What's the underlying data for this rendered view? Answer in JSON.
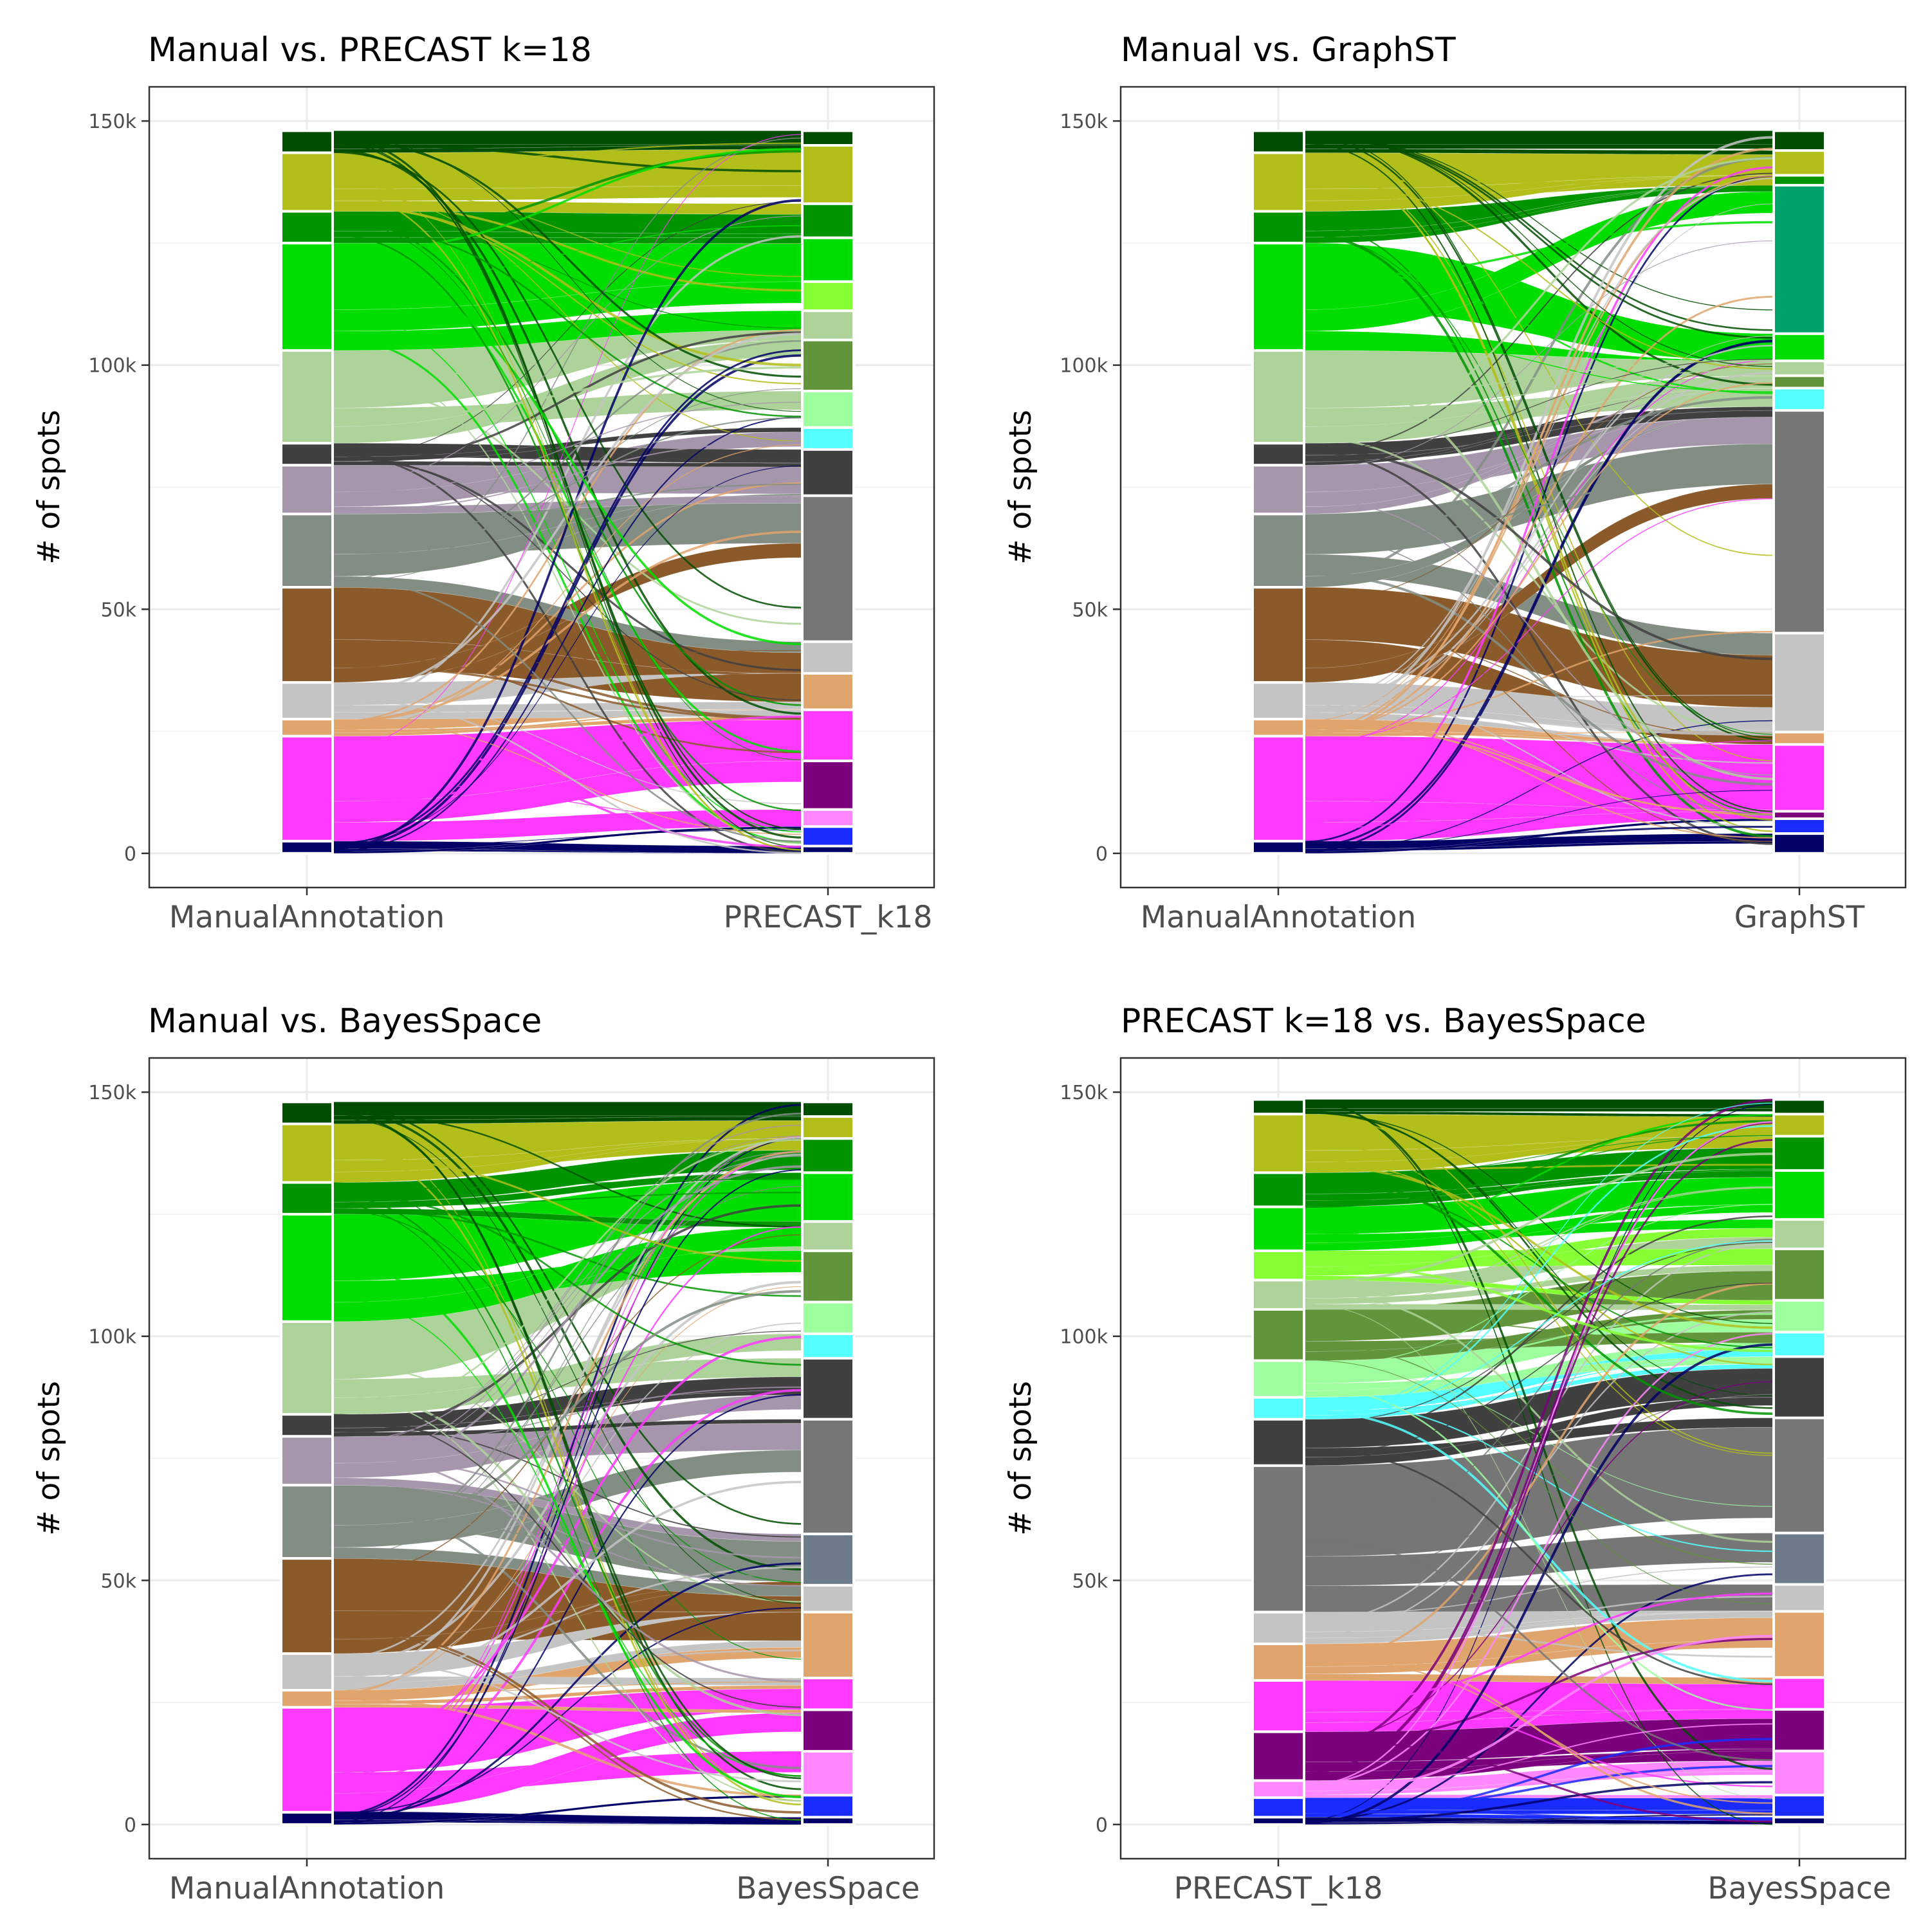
{
  "chart_data": [
    {
      "type": "alluvial",
      "title": "Manual vs. PRECAST k=18",
      "ylabel": "# of spots",
      "ylim": [
        -7000,
        157000
      ],
      "yticks": [
        0,
        50000,
        100000,
        150000
      ],
      "ytick_labels": [
        "0",
        "50k",
        "100k",
        "150k"
      ],
      "axes": [
        "ManualAnnotation",
        "PRECAST_k18"
      ],
      "left_strata": [
        {
          "color": "#004D00",
          "value": 4500
        },
        {
          "color": "#B2BE1A",
          "value": 12000
        },
        {
          "color": "#009400",
          "value": 6500
        },
        {
          "color": "#00DE00",
          "value": 22000
        },
        {
          "color": "#AED39A",
          "value": 19000
        },
        {
          "color": "#404040",
          "value": 4500
        },
        {
          "color": "#A696AB",
          "value": 10000
        },
        {
          "color": "#828E84",
          "value": 15000
        },
        {
          "color": "#8B5A2B",
          "value": 19500
        },
        {
          "color": "#C4C4C4",
          "value": 7500
        },
        {
          "color": "#E0A46D",
          "value": 3500
        },
        {
          "color": "#FF39FF",
          "value": 21500
        },
        {
          "color": "#000066",
          "value": 2500
        }
      ],
      "right_strata": [
        {
          "color": "#004D00",
          "value": 3000
        },
        {
          "color": "#B2BE1A",
          "value": 12000
        },
        {
          "color": "#009400",
          "value": 7000
        },
        {
          "color": "#00DE00",
          "value": 9000
        },
        {
          "color": "#87FF35",
          "value": 6000
        },
        {
          "color": "#AED39A",
          "value": 6000
        },
        {
          "color": "#62953B",
          "value": 10500
        },
        {
          "color": "#9EFF9E",
          "value": 7500
        },
        {
          "color": "#55FFFF",
          "value": 4500
        },
        {
          "color": "#404040",
          "value": 9500
        },
        {
          "color": "#767676",
          "value": 30000
        },
        {
          "color": "#C4C4C4",
          "value": 6500
        },
        {
          "color": "#E0A46D",
          "value": 7500
        },
        {
          "color": "#FF39FF",
          "value": 10500
        },
        {
          "color": "#7B007B",
          "value": 10000
        },
        {
          "color": "#FF87FF",
          "value": 3500
        },
        {
          "color": "#1A2BFF",
          "value": 4000
        },
        {
          "color": "#000066",
          "value": 1500
        }
      ]
    },
    {
      "type": "alluvial",
      "title": "Manual vs. GraphST",
      "ylabel": "# of spots",
      "ylim": [
        -7000,
        157000
      ],
      "yticks": [
        0,
        50000,
        100000,
        150000
      ],
      "ytick_labels": [
        "0",
        "50k",
        "100k",
        "150k"
      ],
      "axes": [
        "ManualAnnotation",
        "GraphST"
      ],
      "left_strata": [
        {
          "color": "#004D00",
          "value": 4500
        },
        {
          "color": "#B2BE1A",
          "value": 12000
        },
        {
          "color": "#009400",
          "value": 6500
        },
        {
          "color": "#00DE00",
          "value": 22000
        },
        {
          "color": "#AED39A",
          "value": 19000
        },
        {
          "color": "#404040",
          "value": 4500
        },
        {
          "color": "#A696AB",
          "value": 10000
        },
        {
          "color": "#828E84",
          "value": 15000
        },
        {
          "color": "#8B5A2B",
          "value": 19500
        },
        {
          "color": "#C4C4C4",
          "value": 7500
        },
        {
          "color": "#E0A46D",
          "value": 3500
        },
        {
          "color": "#FF39FF",
          "value": 21500
        },
        {
          "color": "#000066",
          "value": 2500
        }
      ],
      "right_strata": [
        {
          "color": "#004D00",
          "value": 4000
        },
        {
          "color": "#B2BE1A",
          "value": 5000
        },
        {
          "color": "#009400",
          "value": 2000
        },
        {
          "color": "#00A36B",
          "value": 30000
        },
        {
          "color": "#00DE00",
          "value": 5500
        },
        {
          "color": "#AED39A",
          "value": 3000
        },
        {
          "color": "#62953B",
          "value": 2500
        },
        {
          "color": "#55FFFF",
          "value": 4500
        },
        {
          "color": "#767676",
          "value": 45000
        },
        {
          "color": "#C4C4C4",
          "value": 20000
        },
        {
          "color": "#E0A46D",
          "value": 2500
        },
        {
          "color": "#FF39FF",
          "value": 13500
        },
        {
          "color": "#7B007B",
          "value": 1500
        },
        {
          "color": "#1A2BFF",
          "value": 3000
        },
        {
          "color": "#000066",
          "value": 4000
        }
      ]
    },
    {
      "type": "alluvial",
      "title": "Manual vs. BayesSpace",
      "ylabel": "# of spots",
      "ylim": [
        -7000,
        157000
      ],
      "yticks": [
        0,
        50000,
        100000,
        150000
      ],
      "ytick_labels": [
        "0",
        "50k",
        "100k",
        "150k"
      ],
      "axes": [
        "ManualAnnotation",
        "BayesSpace"
      ],
      "left_strata": [
        {
          "color": "#004D00",
          "value": 4500
        },
        {
          "color": "#B2BE1A",
          "value": 12000
        },
        {
          "color": "#009400",
          "value": 6500
        },
        {
          "color": "#00DE00",
          "value": 22000
        },
        {
          "color": "#AED39A",
          "value": 19000
        },
        {
          "color": "#404040",
          "value": 4500
        },
        {
          "color": "#A696AB",
          "value": 10000
        },
        {
          "color": "#828E84",
          "value": 15000
        },
        {
          "color": "#8B5A2B",
          "value": 19500
        },
        {
          "color": "#C4C4C4",
          "value": 7500
        },
        {
          "color": "#E0A46D",
          "value": 3500
        },
        {
          "color": "#FF39FF",
          "value": 21500
        },
        {
          "color": "#000066",
          "value": 2500
        }
      ],
      "right_strata": [
        {
          "color": "#004D00",
          "value": 3000
        },
        {
          "color": "#B2BE1A",
          "value": 4500
        },
        {
          "color": "#009400",
          "value": 7000
        },
        {
          "color": "#00DE00",
          "value": 10000
        },
        {
          "color": "#AED39A",
          "value": 6000
        },
        {
          "color": "#62953B",
          "value": 10500
        },
        {
          "color": "#9EFF9E",
          "value": 6500
        },
        {
          "color": "#55FFFF",
          "value": 5000
        },
        {
          "color": "#404040",
          "value": 12500
        },
        {
          "color": "#767676",
          "value": 23500
        },
        {
          "color": "#6E7B8B",
          "value": 10500
        },
        {
          "color": "#C4C4C4",
          "value": 5500
        },
        {
          "color": "#E0A46D",
          "value": 13500
        },
        {
          "color": "#FF39FF",
          "value": 6500
        },
        {
          "color": "#7B007B",
          "value": 8500
        },
        {
          "color": "#FF87FF",
          "value": 9000
        },
        {
          "color": "#1A2BFF",
          "value": 4500
        },
        {
          "color": "#000066",
          "value": 1500
        }
      ]
    },
    {
      "type": "alluvial",
      "title": "PRECAST k=18 vs. BayesSpace",
      "ylabel": "# of spots",
      "ylim": [
        -7000,
        157000
      ],
      "yticks": [
        0,
        50000,
        100000,
        150000
      ],
      "ytick_labels": [
        "0",
        "50k",
        "100k",
        "150k"
      ],
      "axes": [
        "PRECAST_k18",
        "BayesSpace"
      ],
      "left_strata": [
        {
          "color": "#004D00",
          "value": 3000
        },
        {
          "color": "#B2BE1A",
          "value": 12000
        },
        {
          "color": "#009400",
          "value": 7000
        },
        {
          "color": "#00DE00",
          "value": 9000
        },
        {
          "color": "#87FF35",
          "value": 6000
        },
        {
          "color": "#AED39A",
          "value": 6000
        },
        {
          "color": "#62953B",
          "value": 10500
        },
        {
          "color": "#9EFF9E",
          "value": 7500
        },
        {
          "color": "#55FFFF",
          "value": 4500
        },
        {
          "color": "#404040",
          "value": 9500
        },
        {
          "color": "#767676",
          "value": 30000
        },
        {
          "color": "#C4C4C4",
          "value": 6500
        },
        {
          "color": "#E0A46D",
          "value": 7500
        },
        {
          "color": "#FF39FF",
          "value": 10500
        },
        {
          "color": "#7B007B",
          "value": 10000
        },
        {
          "color": "#FF87FF",
          "value": 3500
        },
        {
          "color": "#1A2BFF",
          "value": 4000
        },
        {
          "color": "#000066",
          "value": 1500
        }
      ],
      "right_strata": [
        {
          "color": "#004D00",
          "value": 3000
        },
        {
          "color": "#B2BE1A",
          "value": 4500
        },
        {
          "color": "#009400",
          "value": 7000
        },
        {
          "color": "#00DE00",
          "value": 10000
        },
        {
          "color": "#AED39A",
          "value": 6000
        },
        {
          "color": "#62953B",
          "value": 10500
        },
        {
          "color": "#9EFF9E",
          "value": 6500
        },
        {
          "color": "#55FFFF",
          "value": 5000
        },
        {
          "color": "#404040",
          "value": 12500
        },
        {
          "color": "#767676",
          "value": 23500
        },
        {
          "color": "#6E7B8B",
          "value": 10500
        },
        {
          "color": "#C4C4C4",
          "value": 5500
        },
        {
          "color": "#E0A46D",
          "value": 13500
        },
        {
          "color": "#FF39FF",
          "value": 6500
        },
        {
          "color": "#7B007B",
          "value": 8500
        },
        {
          "color": "#FF87FF",
          "value": 9000
        },
        {
          "color": "#1A2BFF",
          "value": 4500
        },
        {
          "color": "#000066",
          "value": 1500
        }
      ]
    }
  ]
}
